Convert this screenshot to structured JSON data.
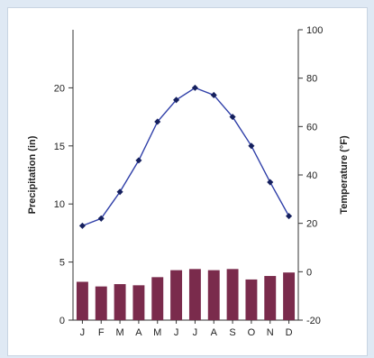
{
  "chart_data": {
    "type": "bar+line",
    "categories": [
      "J",
      "F",
      "M",
      "A",
      "M",
      "J",
      "J",
      "A",
      "S",
      "O",
      "N",
      "D"
    ],
    "series": [
      {
        "type": "bar",
        "axis": "left",
        "values": [
          3.3,
          2.9,
          3.1,
          3.0,
          3.7,
          4.3,
          4.4,
          4.3,
          4.4,
          3.5,
          3.8,
          4.1
        ],
        "color": "#7a2b4c"
      },
      {
        "type": "line",
        "axis": "right",
        "values": [
          19,
          22,
          33,
          46,
          62,
          71,
          76,
          73,
          64,
          52,
          37,
          23
        ],
        "color": "#2f3fa8"
      }
    ],
    "ylabel_left": "Precipitation (in)",
    "ylabel_right": "Temperature (°F)",
    "ylim_left": [
      0,
      25
    ],
    "ylim_right": [
      -20,
      100
    ],
    "yticks_left": [
      0,
      5,
      10,
      15,
      20
    ],
    "yticks_right": [
      -20,
      0,
      20,
      40,
      60,
      80,
      100
    ],
    "grid": false
  }
}
